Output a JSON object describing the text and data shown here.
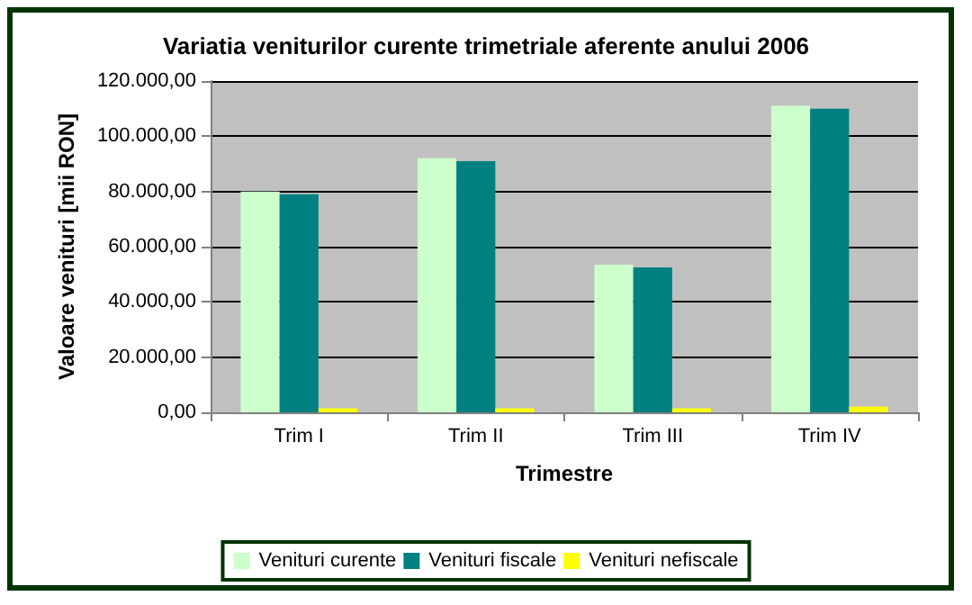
{
  "chart_data": {
    "type": "bar",
    "title": "Variatia veniturilor curente trimetriale aferente anului 2006",
    "xlabel": "Trimestre",
    "ylabel": "Valoare venituri [mii RON]",
    "categories": [
      "Trim I",
      "Trim II",
      "Trim III",
      "Trim IV"
    ],
    "series": [
      {
        "name": "Venituri curente",
        "color": "#ccffcc",
        "values": [
          80000,
          92000,
          53500,
          111000
        ]
      },
      {
        "name": "Venituri fiscale",
        "color": "#008080",
        "values": [
          79000,
          91000,
          52500,
          110000
        ]
      },
      {
        "name": "Venituri nefiscale",
        "color": "#ffff00",
        "values": [
          1500,
          1500,
          1500,
          2000
        ]
      }
    ],
    "ylim": [
      0,
      120000
    ],
    "yticks": [
      {
        "value": 0,
        "label": "0,00"
      },
      {
        "value": 20000,
        "label": "20.000,00"
      },
      {
        "value": 40000,
        "label": "40.000,00"
      },
      {
        "value": 60000,
        "label": "60.000,00"
      },
      {
        "value": 80000,
        "label": "80.000,00"
      },
      {
        "value": 100000,
        "label": "100.000,00"
      },
      {
        "value": 120000,
        "label": "120.000,00"
      }
    ],
    "grid": "y",
    "legend": "bottom"
  }
}
